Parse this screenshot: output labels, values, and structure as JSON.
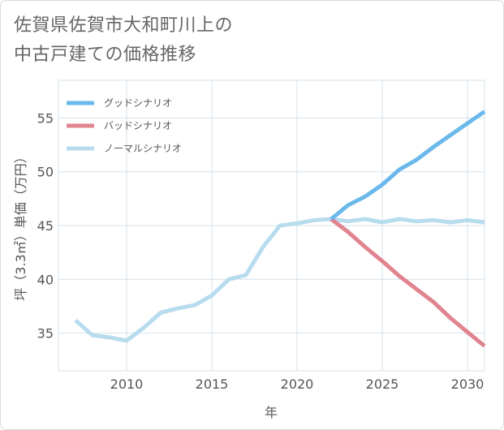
{
  "title": {
    "line1": "佐賀県佐賀市大和町川上の",
    "line2": "中古戸建ての価格推移"
  },
  "colors": {
    "good": "#6bb8ea",
    "bad": "#e0848f",
    "normal": "#b7dcee",
    "grid": "#d6e2ea",
    "background": "#ffffff"
  },
  "chart_data": {
    "type": "line",
    "title": "佐賀県佐賀市大和町川上の中古戸建ての価格推移",
    "xlabel": "年",
    "ylabel": "坪（3.3㎡）単価（万円）",
    "xlim": [
      2006,
      2031
    ],
    "ylim": [
      31.5,
      58.5
    ],
    "xticks": [
      2010,
      2015,
      2020,
      2025,
      2030
    ],
    "yticks": [
      35,
      40,
      45,
      50,
      55
    ],
    "grid": true,
    "legend_position": "top-left",
    "series": [
      {
        "name": "グッドシナリオ",
        "key": "good",
        "x": [
          2022,
          2023,
          2024,
          2025,
          2026,
          2027,
          2028,
          2029,
          2030,
          2031
        ],
        "y": [
          45.6,
          46.9,
          47.7,
          48.8,
          50.2,
          51.1,
          52.3,
          53.4,
          54.5,
          55.6
        ]
      },
      {
        "name": "バッドシナリオ",
        "key": "bad",
        "x": [
          2022,
          2023,
          2024,
          2025,
          2026,
          2027,
          2028,
          2029,
          2030,
          2031
        ],
        "y": [
          45.6,
          44.4,
          43.0,
          41.7,
          40.3,
          39.1,
          37.9,
          36.4,
          35.1,
          33.8
        ]
      },
      {
        "name": "ノーマルシナリオ",
        "key": "normal",
        "x": [
          2007,
          2008,
          2009,
          2010,
          2011,
          2012,
          2013,
          2014,
          2015,
          2016,
          2017,
          2018,
          2019,
          2020,
          2021,
          2022,
          2023,
          2024,
          2025,
          2026,
          2027,
          2028,
          2029,
          2030,
          2031
        ],
        "y": [
          36.2,
          34.8,
          34.6,
          34.3,
          35.5,
          36.9,
          37.3,
          37.6,
          38.5,
          40.0,
          40.4,
          43.0,
          45.0,
          45.2,
          45.5,
          45.6,
          45.4,
          45.6,
          45.3,
          45.6,
          45.4,
          45.5,
          45.3,
          45.5,
          45.3
        ]
      }
    ]
  }
}
